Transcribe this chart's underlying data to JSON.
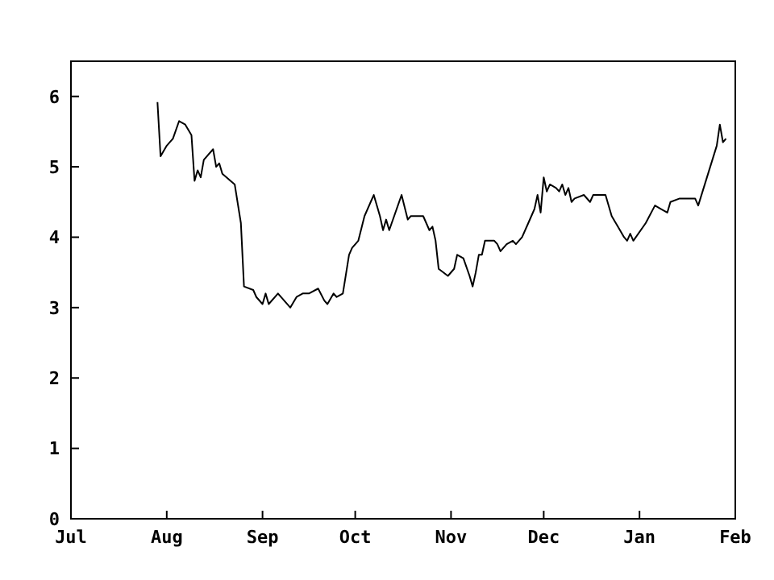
{
  "chart_data": {
    "type": "line",
    "categories": [
      "Jul",
      null,
      null,
      null,
      null,
      null,
      null,
      null,
      null,
      null,
      null,
      null,
      null,
      null,
      null,
      null,
      null,
      null,
      null,
      null,
      null,
      null,
      null,
      null,
      null,
      null,
      null,
      null,
      null,
      null,
      null,
      "Aug",
      null,
      null,
      null,
      null,
      null,
      null,
      null,
      null,
      null,
      null,
      null,
      null,
      null,
      null,
      null,
      null,
      null,
      null,
      null,
      null,
      null,
      null,
      null,
      null,
      null,
      null,
      null,
      null,
      null,
      null,
      "Sep",
      null,
      null,
      null,
      null,
      null,
      null,
      null,
      null,
      null,
      null,
      null,
      null,
      null,
      null,
      null,
      null,
      null,
      null,
      null,
      null,
      null,
      null,
      null,
      null,
      null,
      null,
      null,
      null,
      null,
      "Oct",
      null,
      null,
      null,
      null,
      null,
      null,
      null,
      null,
      null,
      null,
      null,
      null,
      null,
      null,
      null,
      null,
      null,
      null,
      null,
      null,
      null,
      null,
      null,
      null,
      null,
      null,
      null,
      null,
      null,
      null,
      "Nov",
      null,
      null,
      null,
      null,
      null,
      null,
      null,
      null,
      null,
      null,
      null,
      null,
      null,
      null,
      null,
      null,
      null,
      null,
      null,
      null,
      null,
      null,
      null,
      null,
      null,
      null,
      null,
      null,
      null,
      "Dec",
      null,
      null,
      null,
      null,
      null,
      null,
      null,
      null,
      null,
      null,
      null,
      null,
      null,
      null,
      null,
      null,
      null,
      null,
      null,
      null,
      null,
      null,
      null,
      null,
      null,
      null,
      null,
      null,
      null,
      null,
      "Jan",
      null,
      null,
      null,
      null,
      null,
      null,
      null,
      null,
      null,
      null,
      null,
      null,
      null,
      null,
      null,
      null,
      null,
      null,
      null,
      null,
      null,
      null,
      null,
      null,
      null,
      null,
      null,
      null,
      null,
      null,
      "Feb"
    ],
    "series": [
      {
        "color": "#000000",
        "values": [
          null,
          null,
          null,
          null,
          null,
          null,
          null,
          null,
          null,
          null,
          null,
          null,
          null,
          null,
          null,
          null,
          null,
          null,
          null,
          null,
          null,
          null,
          null,
          null,
          null,
          null,
          null,
          null,
          5.92,
          5.15,
          null,
          5.3,
          null,
          5.4,
          null,
          5.65,
          null,
          5.6,
          null,
          5.45,
          4.8,
          4.95,
          4.85,
          5.1,
          null,
          null,
          5.25,
          5.0,
          5.05,
          4.9,
          null,
          null,
          null,
          4.75,
          null,
          4.2,
          3.3,
          null,
          null,
          3.25,
          3.15,
          null,
          3.05,
          3.2,
          3.05,
          null,
          null,
          3.2,
          null,
          null,
          null,
          3.0,
          null,
          3.15,
          null,
          3.2,
          null,
          3.2,
          null,
          null,
          3.27,
          null,
          3.1,
          3.05,
          null,
          3.2,
          3.15,
          null,
          3.2,
          null,
          3.75,
          3.85,
          null,
          3.95,
          null,
          4.3,
          null,
          4.5,
          4.6,
          null,
          4.3,
          4.1,
          4.25,
          4.1,
          null,
          null,
          null,
          4.6,
          null,
          4.25,
          4.3,
          null,
          null,
          null,
          4.3,
          null,
          4.1,
          4.15,
          3.95,
          3.55,
          null,
          null,
          3.45,
          null,
          3.55,
          3.75,
          null,
          3.7,
          null,
          3.45,
          3.3,
          3.5,
          3.75,
          3.75,
          3.95,
          null,
          null,
          3.95,
          3.9,
          3.8,
          null,
          3.9,
          null,
          3.95,
          3.9,
          null,
          4.0,
          null,
          4.2,
          null,
          4.4,
          4.6,
          4.35,
          4.85,
          4.65,
          4.75,
          null,
          4.7,
          4.65,
          4.75,
          4.6,
          4.7,
          4.5,
          4.55,
          null,
          null,
          4.6,
          null,
          4.5,
          4.6,
          null,
          null,
          null,
          4.6,
          null,
          4.3,
          null,
          4.15,
          null,
          4.0,
          3.95,
          4.05,
          3.95,
          null,
          null,
          null,
          4.2,
          null,
          null,
          4.45,
          null,
          4.4,
          null,
          4.35,
          4.5,
          null,
          null,
          4.55,
          null,
          null,
          null,
          null,
          4.55,
          4.45,
          null,
          null,
          null,
          null,
          null,
          5.3,
          5.6,
          5.35,
          5.4,
          null,
          null,
          null
        ]
      }
    ],
    "ylim": [
      0,
      6.5
    ],
    "yticks": [
      0,
      1,
      2,
      3,
      4,
      5,
      6
    ],
    "grid": false,
    "legend": false,
    "marker": "none",
    "line_style": "solid"
  }
}
